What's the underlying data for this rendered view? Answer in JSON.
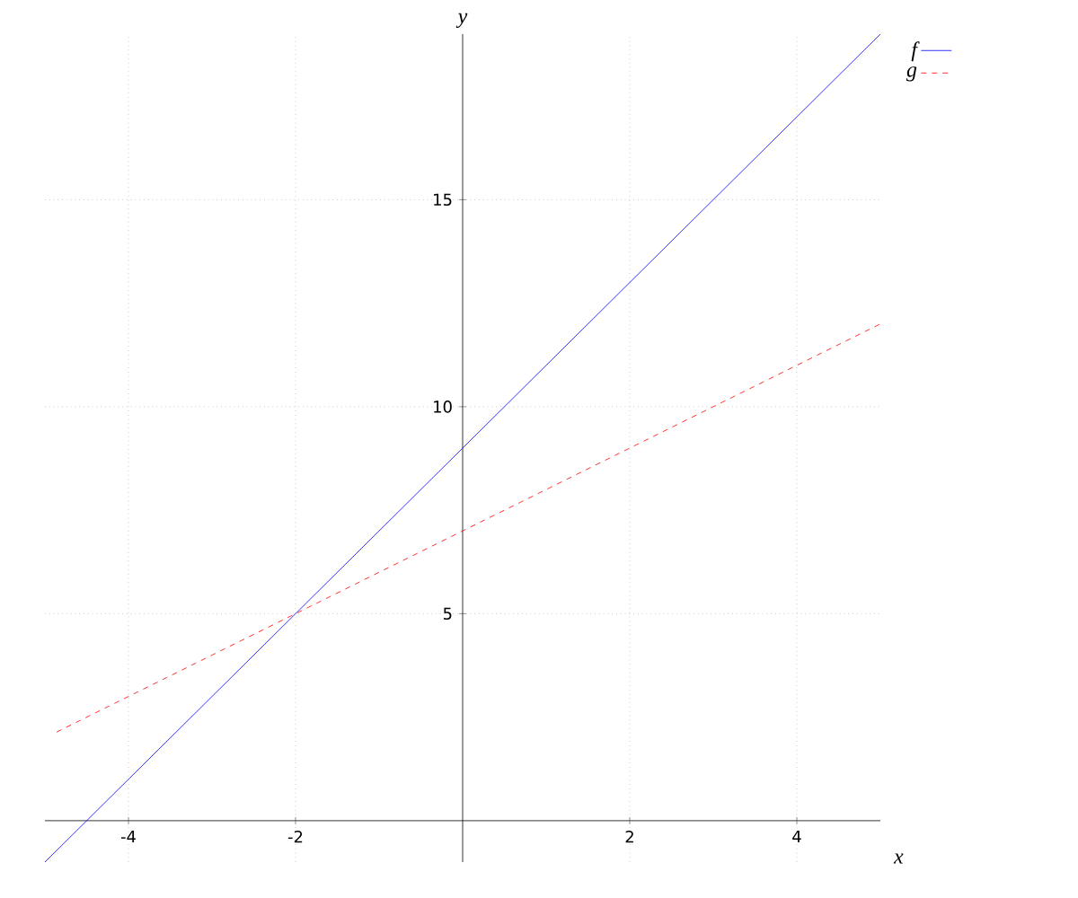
{
  "chart_data": {
    "type": "line",
    "xlabel": "x",
    "ylabel": "y",
    "xlim": [
      -5,
      5
    ],
    "ylim": [
      -1,
      19
    ],
    "xticks": [
      -4,
      -2,
      2,
      4
    ],
    "yticks": [
      5,
      10,
      15
    ],
    "grid": true,
    "legend": "top right",
    "series": [
      {
        "name": "f",
        "color": "#0000ff",
        "line_style": "solid",
        "x": [
          -5,
          5
        ],
        "values": [
          -1,
          19
        ]
      },
      {
        "name": "g",
        "color": "#ff0000",
        "line_style": "dashed",
        "x": [
          -4.86,
          5
        ],
        "values": [
          2.14,
          12
        ]
      }
    ]
  }
}
